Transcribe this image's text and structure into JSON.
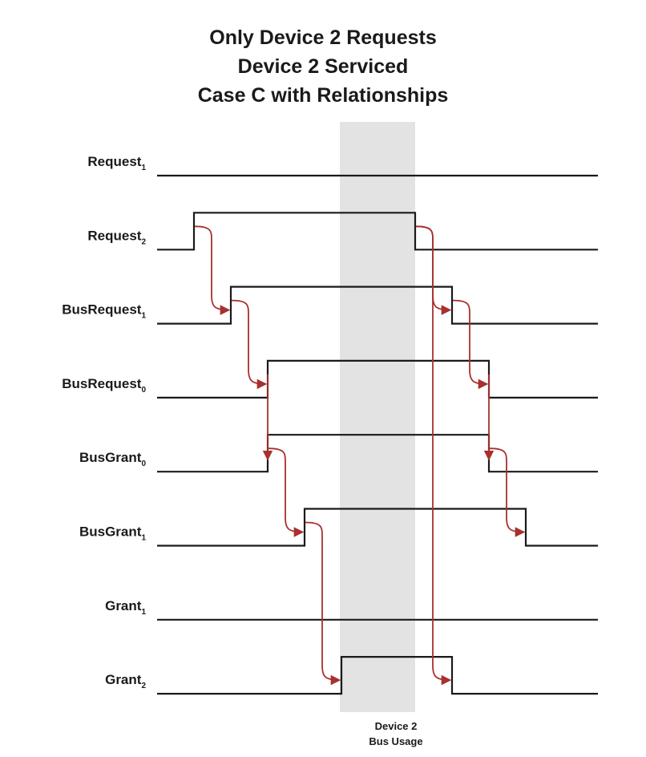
{
  "title": {
    "line1": "Only Device 2 Requests",
    "line2": "Device 2 Serviced",
    "line3": "Case C with Relationships"
  },
  "bus_usage": {
    "line1": "Device 2",
    "line2": "Bus Usage"
  },
  "colors": {
    "signal": "#1a1a1a",
    "arrow": "#a8302e",
    "band": "#e3e3e3"
  },
  "signals": [
    {
      "id": "request1",
      "name": "Request",
      "sub": "1",
      "rise": null,
      "fall": null
    },
    {
      "id": "request2",
      "name": "Request",
      "sub": "2",
      "rise": 1,
      "fall": 7
    },
    {
      "id": "busrequest1",
      "name": "BusRequest",
      "sub": "1",
      "rise": 2,
      "fall": 8
    },
    {
      "id": "busrequest0",
      "name": "BusRequest",
      "sub": "0",
      "rise": 3,
      "fall": 9
    },
    {
      "id": "busgrant0",
      "name": "BusGrant",
      "sub": "0",
      "rise": 3,
      "fall": 9
    },
    {
      "id": "busgrant1",
      "name": "BusGrant",
      "sub": "1",
      "rise": 4,
      "fall": 10
    },
    {
      "id": "grant1",
      "name": "Grant",
      "sub": "1",
      "rise": null,
      "fall": null
    },
    {
      "id": "grant2",
      "name": "Grant",
      "sub": "2",
      "rise": 5,
      "fall": 8
    }
  ],
  "bus_usage_span": [
    5,
    7
  ],
  "relationships": [
    {
      "from": "request2",
      "to": "busrequest1",
      "edge": "rise"
    },
    {
      "from": "busrequest1",
      "to": "busrequest0",
      "edge": "rise"
    },
    {
      "from": "busrequest0",
      "to": "busgrant0",
      "edge": "rise"
    },
    {
      "from": "busgrant0",
      "to": "busgrant1",
      "edge": "rise"
    },
    {
      "from": "busgrant1",
      "to": "grant2",
      "edge": "rise"
    },
    {
      "from": "request2",
      "to": "busrequest1",
      "edge": "fall"
    },
    {
      "from": "request2",
      "to": "grant2",
      "edge": "fall"
    },
    {
      "from": "busrequest1",
      "to": "busrequest0",
      "edge": "fall"
    },
    {
      "from": "busrequest0",
      "to": "busgrant0",
      "edge": "fall"
    },
    {
      "from": "busgrant0",
      "to": "busgrant1",
      "edge": "fall"
    }
  ]
}
